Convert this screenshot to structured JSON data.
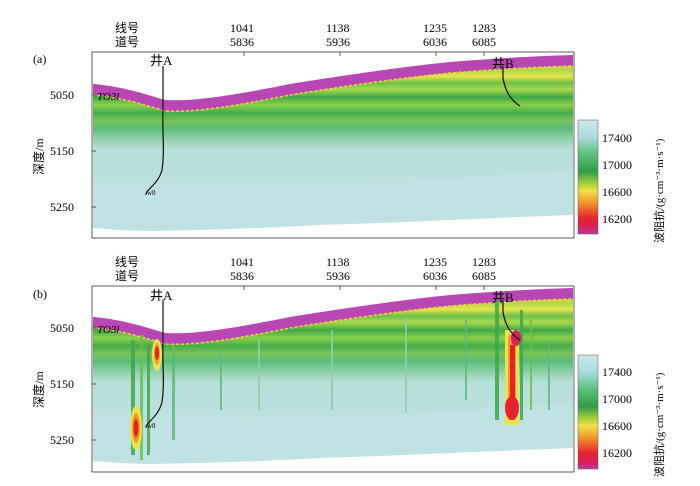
{
  "figure": {
    "panels": [
      {
        "label": "(a)",
        "line_label": "线号",
        "trace_label": "道号",
        "markers": [
          {
            "line": "1041",
            "trace": "5836"
          },
          {
            "line": "1138",
            "trace": "5936"
          },
          {
            "line": "1235",
            "trace": "6036"
          },
          {
            "line": "1283",
            "trace": "6085"
          }
        ],
        "wells": [
          "井A",
          "井B"
        ],
        "horizon": "TO3l",
        "y_axis_title": "深度/m",
        "y_ticks": [
          "5050",
          "5150",
          "5250"
        ],
        "colorbar_title": "波阻抗/(g·cm⁻³·m·s⁻¹)",
        "colorbar_ticks": [
          "17400",
          "17000",
          "16600",
          "16200"
        ],
        "well_tag": "w8"
      },
      {
        "label": "(b)",
        "line_label": "线号",
        "trace_label": "道号",
        "markers": [
          {
            "line": "1041",
            "trace": "5836"
          },
          {
            "line": "1138",
            "trace": "5936"
          },
          {
            "line": "1235",
            "trace": "6036"
          },
          {
            "line": "1283",
            "trace": "6085"
          }
        ],
        "wells": [
          "井A",
          "井B"
        ],
        "horizon": "TO3l",
        "y_axis_title": "深度/m",
        "y_ticks": [
          "5050",
          "5150",
          "5250"
        ],
        "colorbar_title": "波阻抗/(g·cm⁻³·m·s⁻¹)",
        "colorbar_ticks": [
          "17400",
          "17000",
          "16600",
          "16200"
        ],
        "well_tag": "w8"
      }
    ],
    "colors": {
      "magenta_cap": "#b846b3",
      "horizon": "#f0d040",
      "deep": "#b9dde0",
      "green_dark": "#34a84a",
      "green_mid": "#6cc04a",
      "green_light": "#a8d84a",
      "yellow": "#f2e84a",
      "orange": "#f59a2a",
      "red": "#e4232d"
    }
  }
}
